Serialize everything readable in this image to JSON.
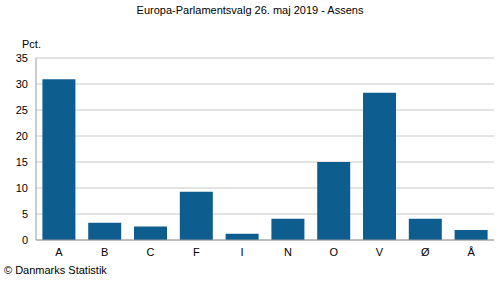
{
  "chart_data": {
    "type": "bar",
    "title": "Europa-Parlamentsvalg 26. maj 2019 - Assens",
    "y_label": "Pct.",
    "annotations": [
      "© Danmarks Statistik"
    ],
    "categories": [
      "A",
      "B",
      "C",
      "F",
      "I",
      "N",
      "O",
      "V",
      "Ø",
      "Å"
    ],
    "values": [
      30.9,
      3.3,
      2.6,
      9.3,
      1.2,
      4.1,
      15.0,
      28.3,
      4.1,
      1.9
    ],
    "color": "#0e5d8f",
    "ylim": [
      0,
      35
    ],
    "yticks": [
      0,
      5,
      10,
      15,
      20,
      25,
      30,
      35
    ],
    "grid": true
  }
}
